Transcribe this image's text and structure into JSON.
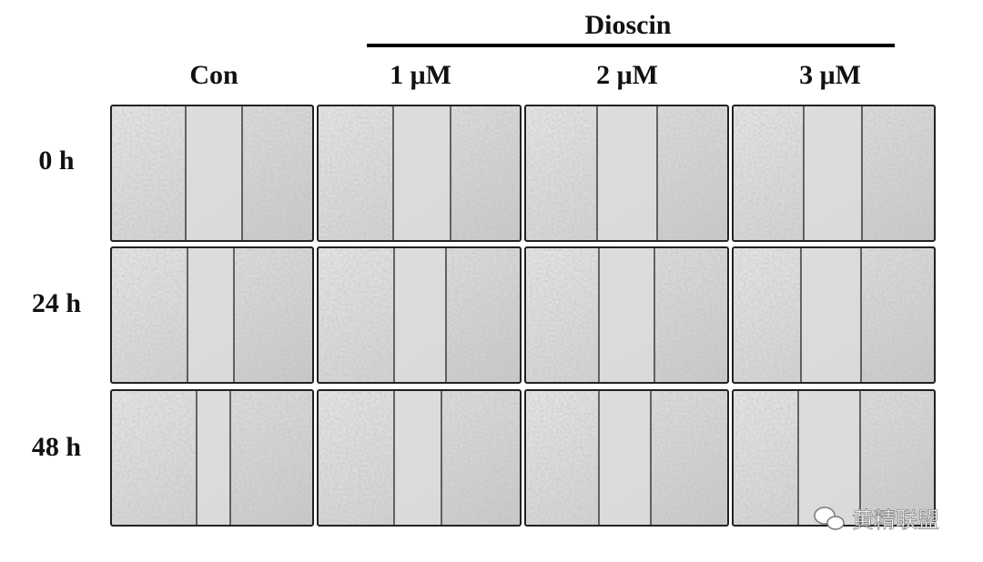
{
  "figure": {
    "group_label": "Dioscin",
    "columns": [
      "Con",
      "1 μM",
      "2 μM",
      "3 μM"
    ],
    "rows": [
      "0 h",
      "24 h",
      "48 h"
    ],
    "watermark": "黄精联盟"
  }
}
